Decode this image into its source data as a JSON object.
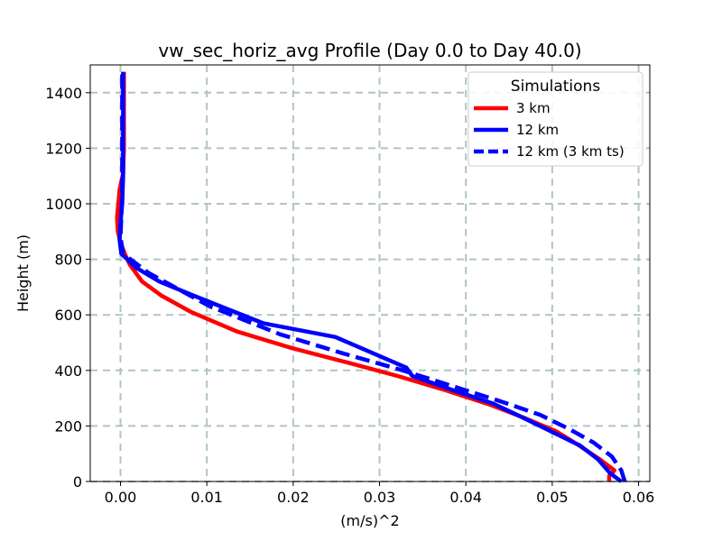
{
  "chart_data": {
    "type": "line",
    "title": "vw_sec_horiz_avg Profile (Day 0.0 to Day 40.0)",
    "xlabel": "(m/s)^2",
    "ylabel": "Height (m)",
    "xlim": [
      -0.0035,
      0.0613
    ],
    "ylim": [
      0,
      1500
    ],
    "x_ticks": [
      0.0,
      0.01,
      0.02,
      0.03,
      0.04,
      0.05,
      0.06
    ],
    "x_tick_labels": [
      "0.00",
      "0.01",
      "0.02",
      "0.03",
      "0.04",
      "0.05",
      "0.06"
    ],
    "y_ticks": [
      0,
      200,
      400,
      600,
      800,
      1000,
      1200,
      1400
    ],
    "y_tick_labels": [
      "0",
      "200",
      "400",
      "600",
      "800",
      "1000",
      "1200",
      "1400"
    ],
    "grid": true,
    "legend": {
      "title": "Simulations",
      "position": "top-right"
    },
    "series": [
      {
        "name": "3 km",
        "color": "#ff0000",
        "style": "solid",
        "x": [
          0.0566,
          0.0566,
          0.0572,
          0.0555,
          0.0531,
          0.0505,
          0.0467,
          0.0425,
          0.0375,
          0.0321,
          0.0261,
          0.0199,
          0.0135,
          0.0082,
          0.0047,
          0.0025,
          0.0011,
          0.0005,
          0.0,
          -0.0003,
          -0.0004,
          -0.0001,
          0.0003,
          0.0004,
          0.0004,
          0.0004,
          0.0004
        ],
        "y": [
          0,
          20,
          40,
          80,
          130,
          180,
          230,
          280,
          330,
          380,
          430,
          480,
          540,
          610,
          670,
          720,
          780,
          820,
          860,
          900,
          950,
          1050,
          1110,
          1200,
          1300,
          1400,
          1475
        ]
      },
      {
        "name": "12 km",
        "color": "#0000ff",
        "style": "solid",
        "x": [
          0.058,
          0.0567,
          0.0553,
          0.0532,
          0.0499,
          0.0466,
          0.0432,
          0.0384,
          0.0338,
          0.0331,
          0.0249,
          0.0165,
          0.0084,
          0.0045,
          0.0018,
          0.0001,
          -0.0001,
          0.0,
          0.0002,
          0.0003,
          0.0003,
          0.0003,
          0.0003
        ],
        "y": [
          0,
          30,
          80,
          130,
          180,
          230,
          280,
          330,
          380,
          410,
          520,
          570,
          670,
          720,
          770,
          820,
          870,
          930,
          1000,
          1100,
          1200,
          1300,
          1475
        ]
      },
      {
        "name": "12 km (3 km ts)",
        "color": "#0000ff",
        "style": "dashed",
        "x": [
          0.0584,
          0.058,
          0.0569,
          0.0548,
          0.0519,
          0.0486,
          0.0439,
          0.0388,
          0.0327,
          0.0259,
          0.0185,
          0.0104,
          0.0033,
          0.0003,
          0.0,
          0.0001,
          0.0002,
          0.0002,
          0.0002,
          0.0002
        ],
        "y": [
          0,
          40,
          90,
          140,
          190,
          240,
          290,
          340,
          400,
          460,
          530,
          630,
          750,
          820,
          880,
          950,
          1050,
          1200,
          1350,
          1475
        ]
      }
    ]
  }
}
